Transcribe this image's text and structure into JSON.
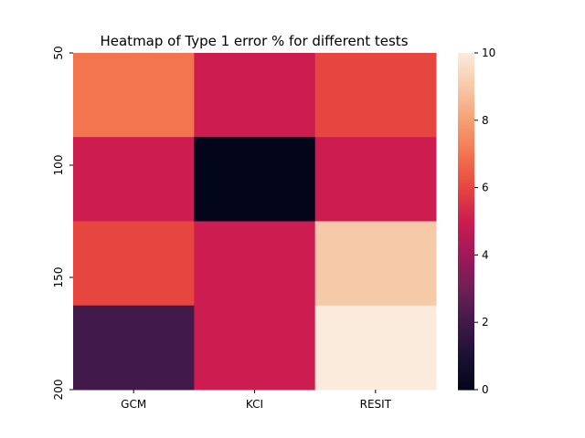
{
  "chart_data": {
    "type": "heatmap",
    "title": "Heatmap of Type 1 error % for different tests",
    "xlabel": "",
    "ylabel": "",
    "x_categories": [
      "GCM",
      "KCI",
      "RESIT"
    ],
    "y_tick_labels": [
      "50",
      "100",
      "150",
      "200"
    ],
    "values": [
      [
        7,
        5,
        6
      ],
      [
        5,
        0,
        5
      ],
      [
        6,
        5,
        9
      ],
      [
        2,
        5,
        10
      ]
    ],
    "colorbar": {
      "vmin": 0,
      "vmax": 10,
      "tick_labels": [
        "0",
        "2",
        "4",
        "6",
        "8",
        "10"
      ]
    },
    "colormap": "rocket",
    "grid": false
  }
}
